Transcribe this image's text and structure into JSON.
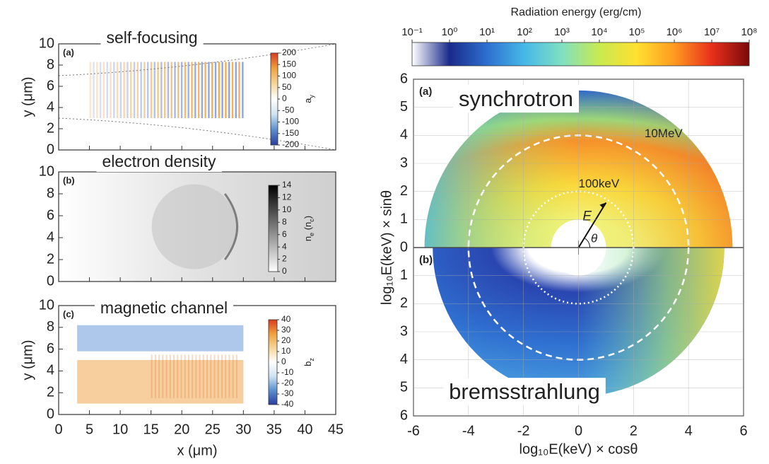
{
  "chart_data": [
    {
      "type": "heatmap",
      "panel": "(a)",
      "title": "self-focusing",
      "xlim": [
        0,
        45
      ],
      "ylim": [
        0,
        10
      ],
      "yticks": [
        0,
        2,
        4,
        6,
        8,
        10
      ],
      "ylabel": "y (μm)",
      "colorbar": {
        "label": [
          {
            "text": "a"
          },
          {
            "text": "y",
            "sub": true
          }
        ],
        "clim": [
          -200,
          200
        ],
        "cticks": [
          -200,
          -150,
          -100,
          -50,
          0,
          50,
          100,
          150,
          200
        ],
        "colormap": [
          "#2b3d9e",
          "#5a8fd0",
          "#cfe3f0",
          "#ffffff",
          "#f6d79a",
          "#f0a03c",
          "#d93a20"
        ]
      }
    },
    {
      "type": "heatmap",
      "panel": "(b)",
      "title": "electron density",
      "xlim": [
        0,
        45
      ],
      "ylim": [
        0,
        10
      ],
      "yticks": [
        0,
        2,
        4,
        6,
        8,
        10
      ],
      "colorbar": {
        "label": [
          {
            "text": "n"
          },
          {
            "text": "e",
            "sub": true
          },
          {
            "text": " (n"
          },
          {
            "text": "c",
            "sub": true
          },
          {
            "text": ")"
          }
        ],
        "clim": [
          0,
          14
        ],
        "cticks": [
          0,
          2,
          4,
          6,
          8,
          10,
          12,
          14
        ],
        "colormap": [
          "#ffffff",
          "#000000"
        ]
      }
    },
    {
      "type": "heatmap",
      "panel": "(c)",
      "title": "magnetic channel",
      "xlim": [
        0,
        45
      ],
      "ylim": [
        0,
        10
      ],
      "xticks": [
        0,
        5,
        10,
        15,
        20,
        25,
        30,
        35,
        40,
        45
      ],
      "yticks": [
        0,
        2,
        4,
        6,
        8,
        10
      ],
      "xlabel": "x (μm)",
      "ylabel": "y (μm)",
      "colorbar": {
        "label": [
          {
            "text": "b"
          },
          {
            "text": "z",
            "sub": true
          }
        ],
        "clim": [
          -40,
          40
        ],
        "cticks": [
          -40,
          -30,
          -20,
          -10,
          0,
          10,
          20,
          30,
          40
        ],
        "colormap": [
          "#2b3d9e",
          "#5a8fd0",
          "#cfe3f0",
          "#ffffff",
          "#f6d79a",
          "#f0a03c",
          "#d93a20"
        ]
      }
    },
    {
      "type": "polar-heatmap",
      "upper_panel": "(a)",
      "upper_label": "synchrotron",
      "lower_panel": "(b)",
      "lower_label": "bremsstrahlung",
      "xlabel": "log₁₀E(keV) × cosθ",
      "ylabel": "log₁₀E(keV) × sinθ",
      "xlim": [
        -6,
        6
      ],
      "ylim": [
        -6,
        6
      ],
      "xticks": [
        -6,
        -4,
        -2,
        0,
        2,
        4,
        6
      ],
      "yticks": [
        {
          "value": -6,
          "label": "6"
        },
        {
          "value": -5,
          "label": "5"
        },
        {
          "value": -4,
          "label": "4"
        },
        {
          "value": -3,
          "label": "3"
        },
        {
          "value": -2,
          "label": "2"
        },
        {
          "value": -1,
          "label": "1"
        },
        0,
        1,
        2,
        3,
        4,
        5,
        6
      ],
      "rings": [
        {
          "label": "10MeV",
          "radius": 4
        },
        {
          "label": "100keV",
          "radius": 2
        }
      ],
      "vector_label": "E",
      "angle_label": "θ",
      "colorbar": {
        "title": "Radiation energy (erg/cm)",
        "log": true,
        "clim": [
          0.1,
          100000000
        ],
        "cticks": [
          {
            "value": 0.1,
            "label": "10⁻¹"
          },
          {
            "value": 1,
            "label": "10⁰"
          },
          {
            "value": 10,
            "label": "10¹"
          },
          {
            "value": 100,
            "label": "10²"
          },
          {
            "value": 1000,
            "label": "10³"
          },
          {
            "value": 10000,
            "label": "10⁴"
          },
          {
            "value": 100000,
            "label": "10⁵"
          },
          {
            "value": 1000000,
            "label": "10⁶"
          },
          {
            "value": 10000000,
            "label": "10⁷"
          },
          {
            "value": 100000000,
            "label": "10⁸"
          }
        ],
        "colormap": [
          "#ffffff",
          "#1a2a8a",
          "#2e6fd0",
          "#47b8e8",
          "#7fe0c0",
          "#c8ea50",
          "#ffe030",
          "#ff9a20",
          "#e8301a",
          "#7a0a0a"
        ]
      }
    }
  ]
}
